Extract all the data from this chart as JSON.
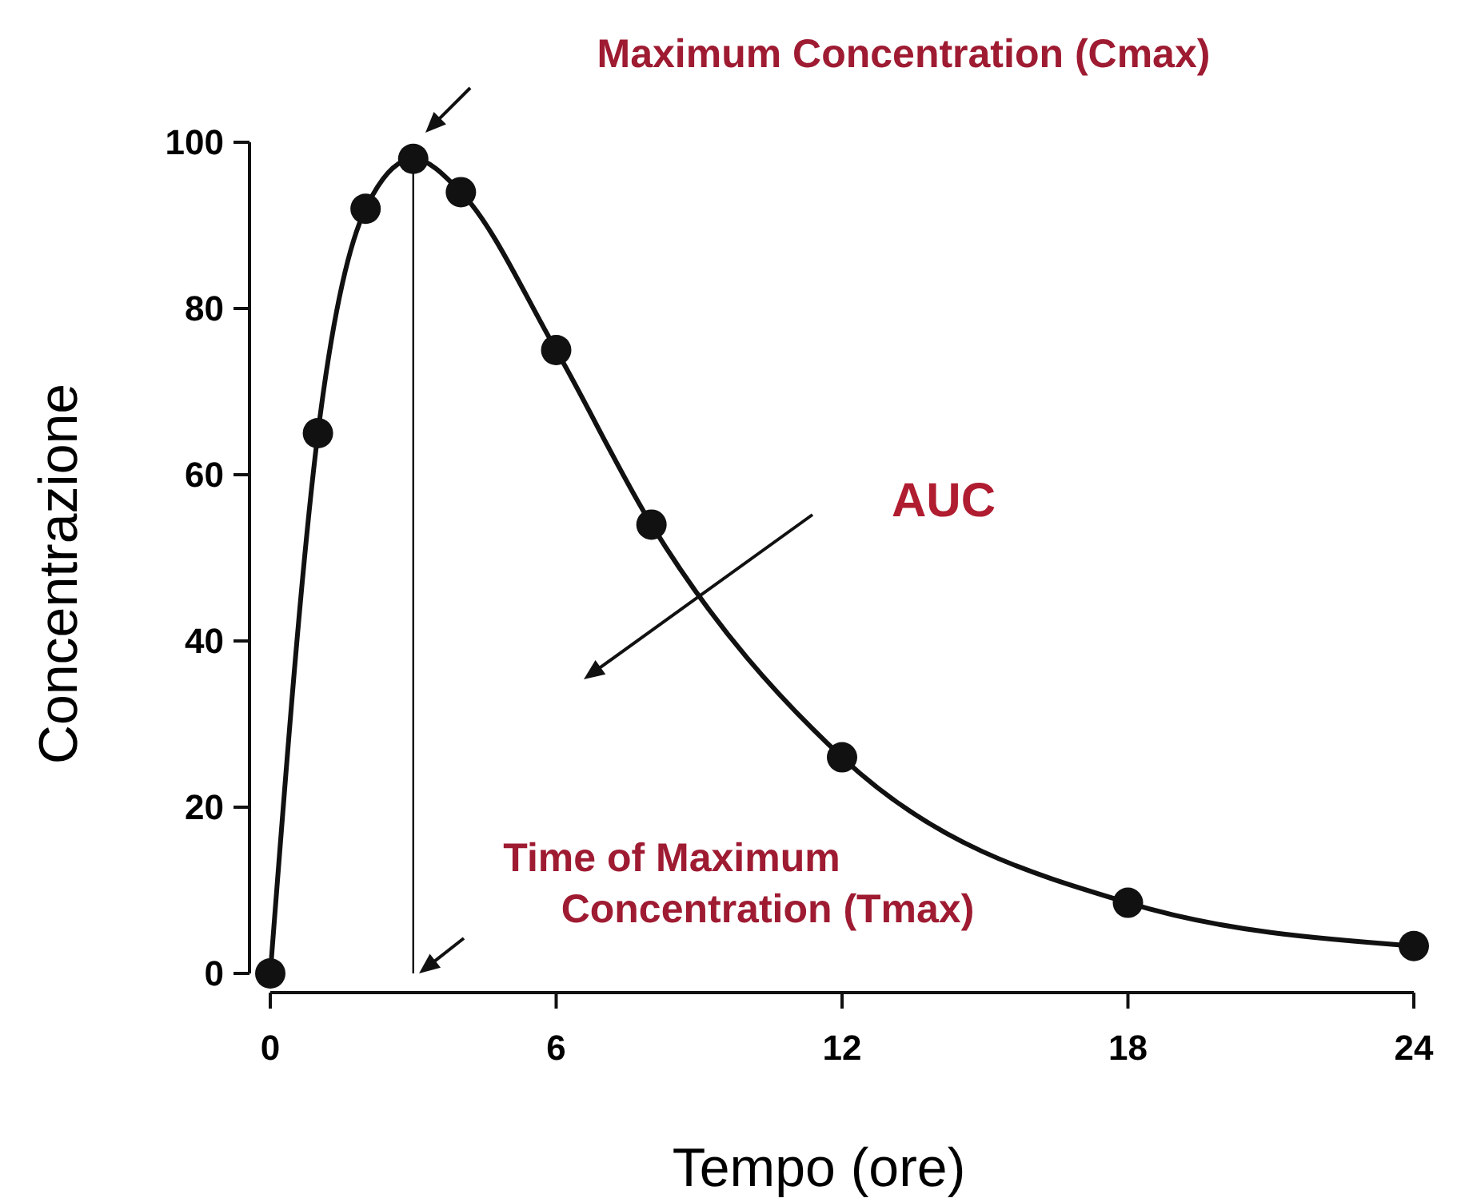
{
  "chart_data": {
    "type": "line",
    "xlabel": "Tempo (ore)",
    "ylabel": "Concentrazione",
    "x": [
      0,
      1,
      2,
      3,
      4,
      6,
      8,
      12,
      18,
      24
    ],
    "series": [
      {
        "color": "#111111",
        "values": [
          0,
          65,
          92,
          98,
          94,
          75,
          54,
          26,
          8.5,
          3.3
        ]
      }
    ],
    "xlim": [
      0,
      24
    ],
    "xticks": [
      0,
      6,
      12,
      18,
      24
    ],
    "ylim": [
      0,
      100
    ],
    "yticks": [
      0,
      20,
      40,
      60,
      80,
      100
    ],
    "marker": "circle",
    "line_style": "solid",
    "grid": false,
    "ref_lines": [
      {
        "axis": "x",
        "value": 3,
        "color": "#111111"
      }
    ],
    "annotations": [
      "Maximum Concentration (Cmax)",
      "Time of Maximum Concentration (Tmax)",
      "AUC"
    ]
  }
}
